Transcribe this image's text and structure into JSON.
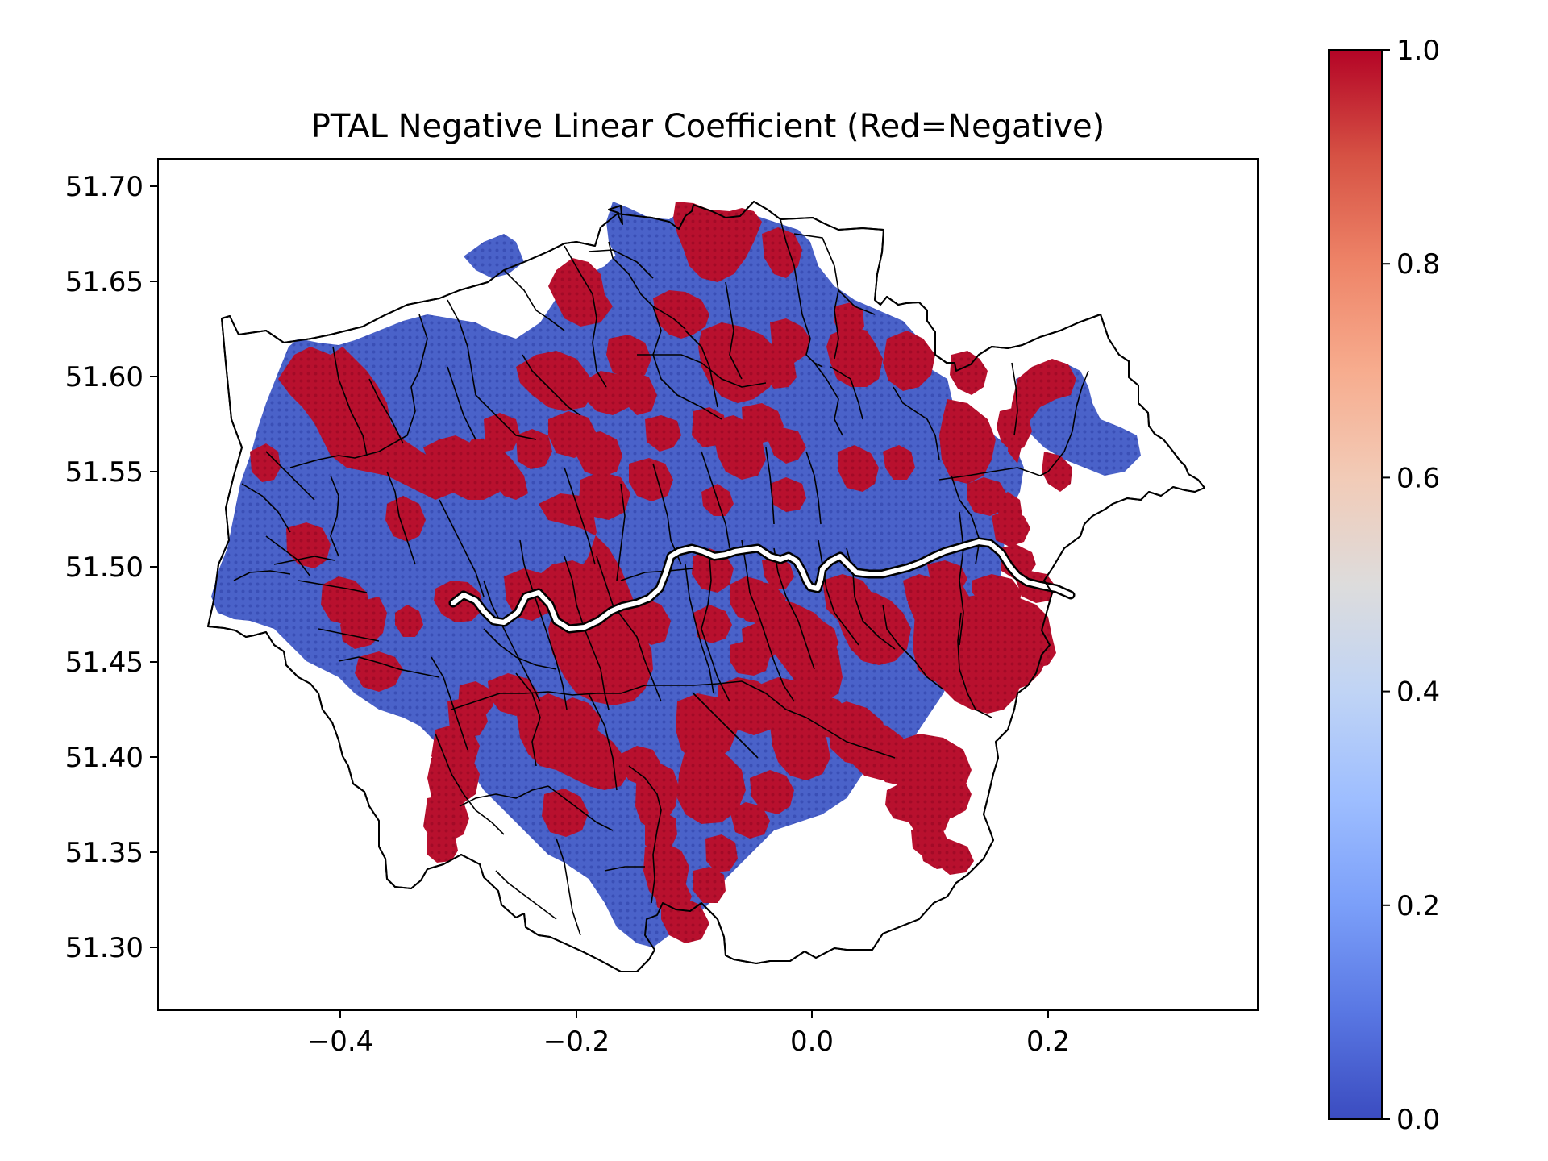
{
  "map": {
    "title": "PTAL Negative Linear Coefficient (Red=Negative)",
    "x_ticks": [
      "−0.4",
      "−0.2",
      "0.0",
      "0.2"
    ],
    "y_ticks": [
      "51.70",
      "51.65",
      "51.60",
      "51.55",
      "51.50",
      "51.45",
      "51.40",
      "51.35",
      "51.30"
    ],
    "colorbar": {
      "ticks": [
        "0.0",
        "0.2",
        "0.4",
        "0.6",
        "0.8",
        "1.0"
      ],
      "colormap": "coolwarm",
      "low_color": "#3b4cc0",
      "mid_color": "#dddddd",
      "high_color": "#b40426"
    },
    "extent": {
      "lon": [
        -0.55,
        0.38
      ],
      "lat": [
        51.265,
        51.715
      ]
    },
    "cell_colors": {
      "red": "#b40c2c",
      "blue": "#4760c8",
      "boundary": "#000000"
    }
  }
}
